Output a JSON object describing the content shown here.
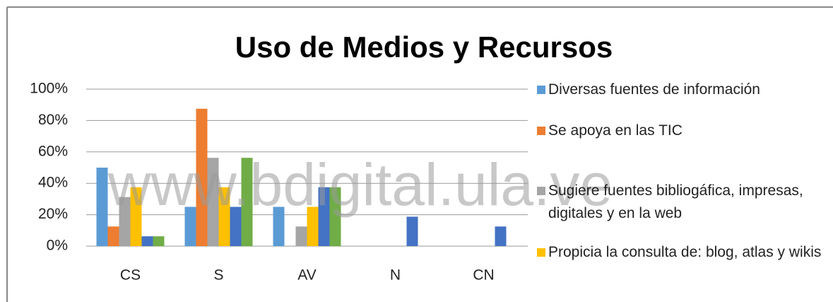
{
  "chart_data": {
    "type": "bar",
    "title": "Uso de Medios y Recursos",
    "watermark": "www.bdigital.ula.ve",
    "categories": [
      "CS",
      "S",
      "AV",
      "N",
      "CN"
    ],
    "series": [
      {
        "name": "Diversas fuentes de información",
        "color": "#5b9bd5",
        "values": [
          50,
          25,
          25,
          0,
          0
        ]
      },
      {
        "name": "Se apoya en las TIC",
        "color": "#ed7d31",
        "values": [
          12.5,
          87.5,
          0,
          0,
          0
        ]
      },
      {
        "name": "Sugiere fuentes bibliogáfica, impresas, digitales y en la web",
        "color": "#a5a5a5",
        "values": [
          31.25,
          56.25,
          12.5,
          0,
          0
        ]
      },
      {
        "name": "Propicia la consulta de: blog, atlas y wikis",
        "color": "#ffc000",
        "values": [
          37.5,
          37.5,
          25,
          0,
          0
        ]
      },
      {
        "color": "#4472c4",
        "values": [
          6.25,
          25,
          37.5,
          18.75,
          12.5
        ]
      },
      {
        "color": "#70ad47",
        "values": [
          6.25,
          56.25,
          37.5,
          0,
          0
        ]
      }
    ],
    "ylim": [
      0,
      100
    ],
    "yticks": [
      {
        "value": 0,
        "label": "0%"
      },
      {
        "value": 20,
        "label": "20%"
      },
      {
        "value": 40,
        "label": "40%"
      },
      {
        "value": 60,
        "label": "60%"
      },
      {
        "value": 80,
        "label": "80%"
      },
      {
        "value": 100,
        "label": "100%"
      }
    ],
    "grid": true,
    "legend": "right"
  }
}
